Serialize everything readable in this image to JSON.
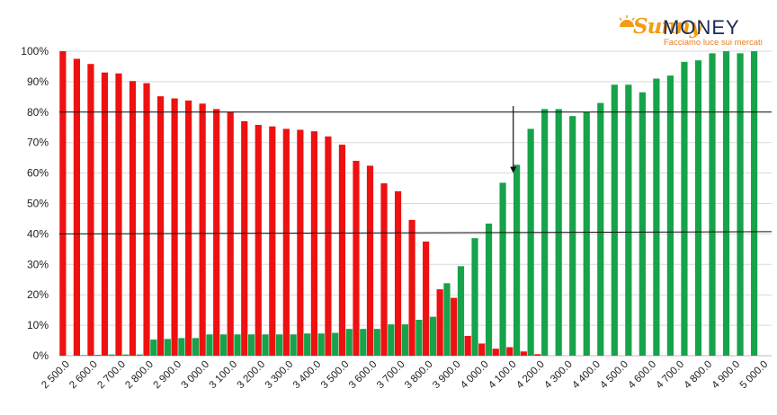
{
  "brand": {
    "name_part1": "Sunny",
    "name_part2": "MONEY",
    "tagline": "Facciamo luce sui mercati",
    "accent_color": "#f39c12",
    "dark_color": "#1a2a5a"
  },
  "chart_data": {
    "type": "bar",
    "title": "",
    "xlabel": "",
    "ylabel": "",
    "ylim": [
      0,
      100
    ],
    "y_ticks": [
      "0%",
      "10%",
      "20%",
      "30%",
      "40%",
      "50%",
      "60%",
      "70%",
      "80%",
      "90%",
      "100%"
    ],
    "grid": true,
    "categories": [
      "2 500.0",
      "2 550.0",
      "2 600.0",
      "2 650.0",
      "2 700.0",
      "2 750.0",
      "2 800.0",
      "2 850.0",
      "2 900.0",
      "2 950.0",
      "3 000.0",
      "3 050.0",
      "3 100.0",
      "3 150.0",
      "3 200.0",
      "3 250.0",
      "3 300.0",
      "3 350.0",
      "3 400.0",
      "3 450.0",
      "3 500.0",
      "3 550.0",
      "3 600.0",
      "3 650.0",
      "3 700.0",
      "3 750.0",
      "3 800.0",
      "3 850.0",
      "3 900.0",
      "3 950.0",
      "4 000.0",
      "4 050.0",
      "4 100.0",
      "4 150.0",
      "4 200.0",
      "4 250.0",
      "4 300.0",
      "4 350.0",
      "4 400.0",
      "4 450.0",
      "4 500.0",
      "4 550.0",
      "4 600.0",
      "4 650.0",
      "4 700.0",
      "4 750.0",
      "4 800.0",
      "4 850.0",
      "4 900.0",
      "4 950.0",
      "5 000.0"
    ],
    "x_tick_labels": [
      "2 500.0",
      "2 600.0",
      "2 700.0",
      "2 800.0",
      "2 900.0",
      "3 000.0",
      "3 100.0",
      "3 200.0",
      "3 300.0",
      "3 400.0",
      "3 500.0",
      "3 600.0",
      "3 700.0",
      "3 800.0",
      "3 900.0",
      "4 000.0",
      "4 100.0",
      "4 200.0",
      "4 300.0",
      "4 400.0",
      "4 500.0",
      "4 600.0",
      "4 700.0",
      "4 800.0",
      "4 900.0",
      "5 000.0"
    ],
    "series": [
      {
        "color": "#ee1111",
        "values": [
          100,
          97.5,
          95.8,
          93,
          92.7,
          90.2,
          89.5,
          85.2,
          84.5,
          83.8,
          82.8,
          81,
          80,
          77,
          75.8,
          75.3,
          74.5,
          74.2,
          73.7,
          72,
          69.3,
          64,
          62.4,
          56.6,
          54,
          44.6,
          37.5,
          21.8,
          19,
          6.5,
          4,
          2.3,
          2.8,
          1.4,
          0.5,
          0,
          0,
          0,
          0,
          0,
          0,
          0,
          0,
          0,
          0,
          0,
          0,
          0,
          0,
          0,
          0
        ]
      },
      {
        "color": "#16a34a",
        "values": [
          0,
          0.2,
          0.3,
          0.4,
          0.4,
          0.4,
          5.3,
          5.5,
          5.8,
          5.8,
          7,
          7,
          7,
          7,
          7,
          7,
          7,
          7.3,
          7.3,
          7.5,
          8.8,
          8.8,
          8.8,
          10.3,
          10.3,
          11.8,
          12.8,
          23.8,
          29.4,
          38.6,
          43.4,
          56.8,
          62.7,
          74.5,
          81,
          81,
          78.7,
          80,
          83,
          89,
          89,
          86.5,
          91,
          92,
          96.5,
          97,
          99.3,
          100,
          99.3,
          100,
          0
        ]
      }
    ],
    "annotations": {
      "horizontal_lines": [
        80,
        40
      ],
      "arrow": {
        "category": "4 100.0",
        "from_value": 82,
        "to_value": 60
      }
    }
  }
}
